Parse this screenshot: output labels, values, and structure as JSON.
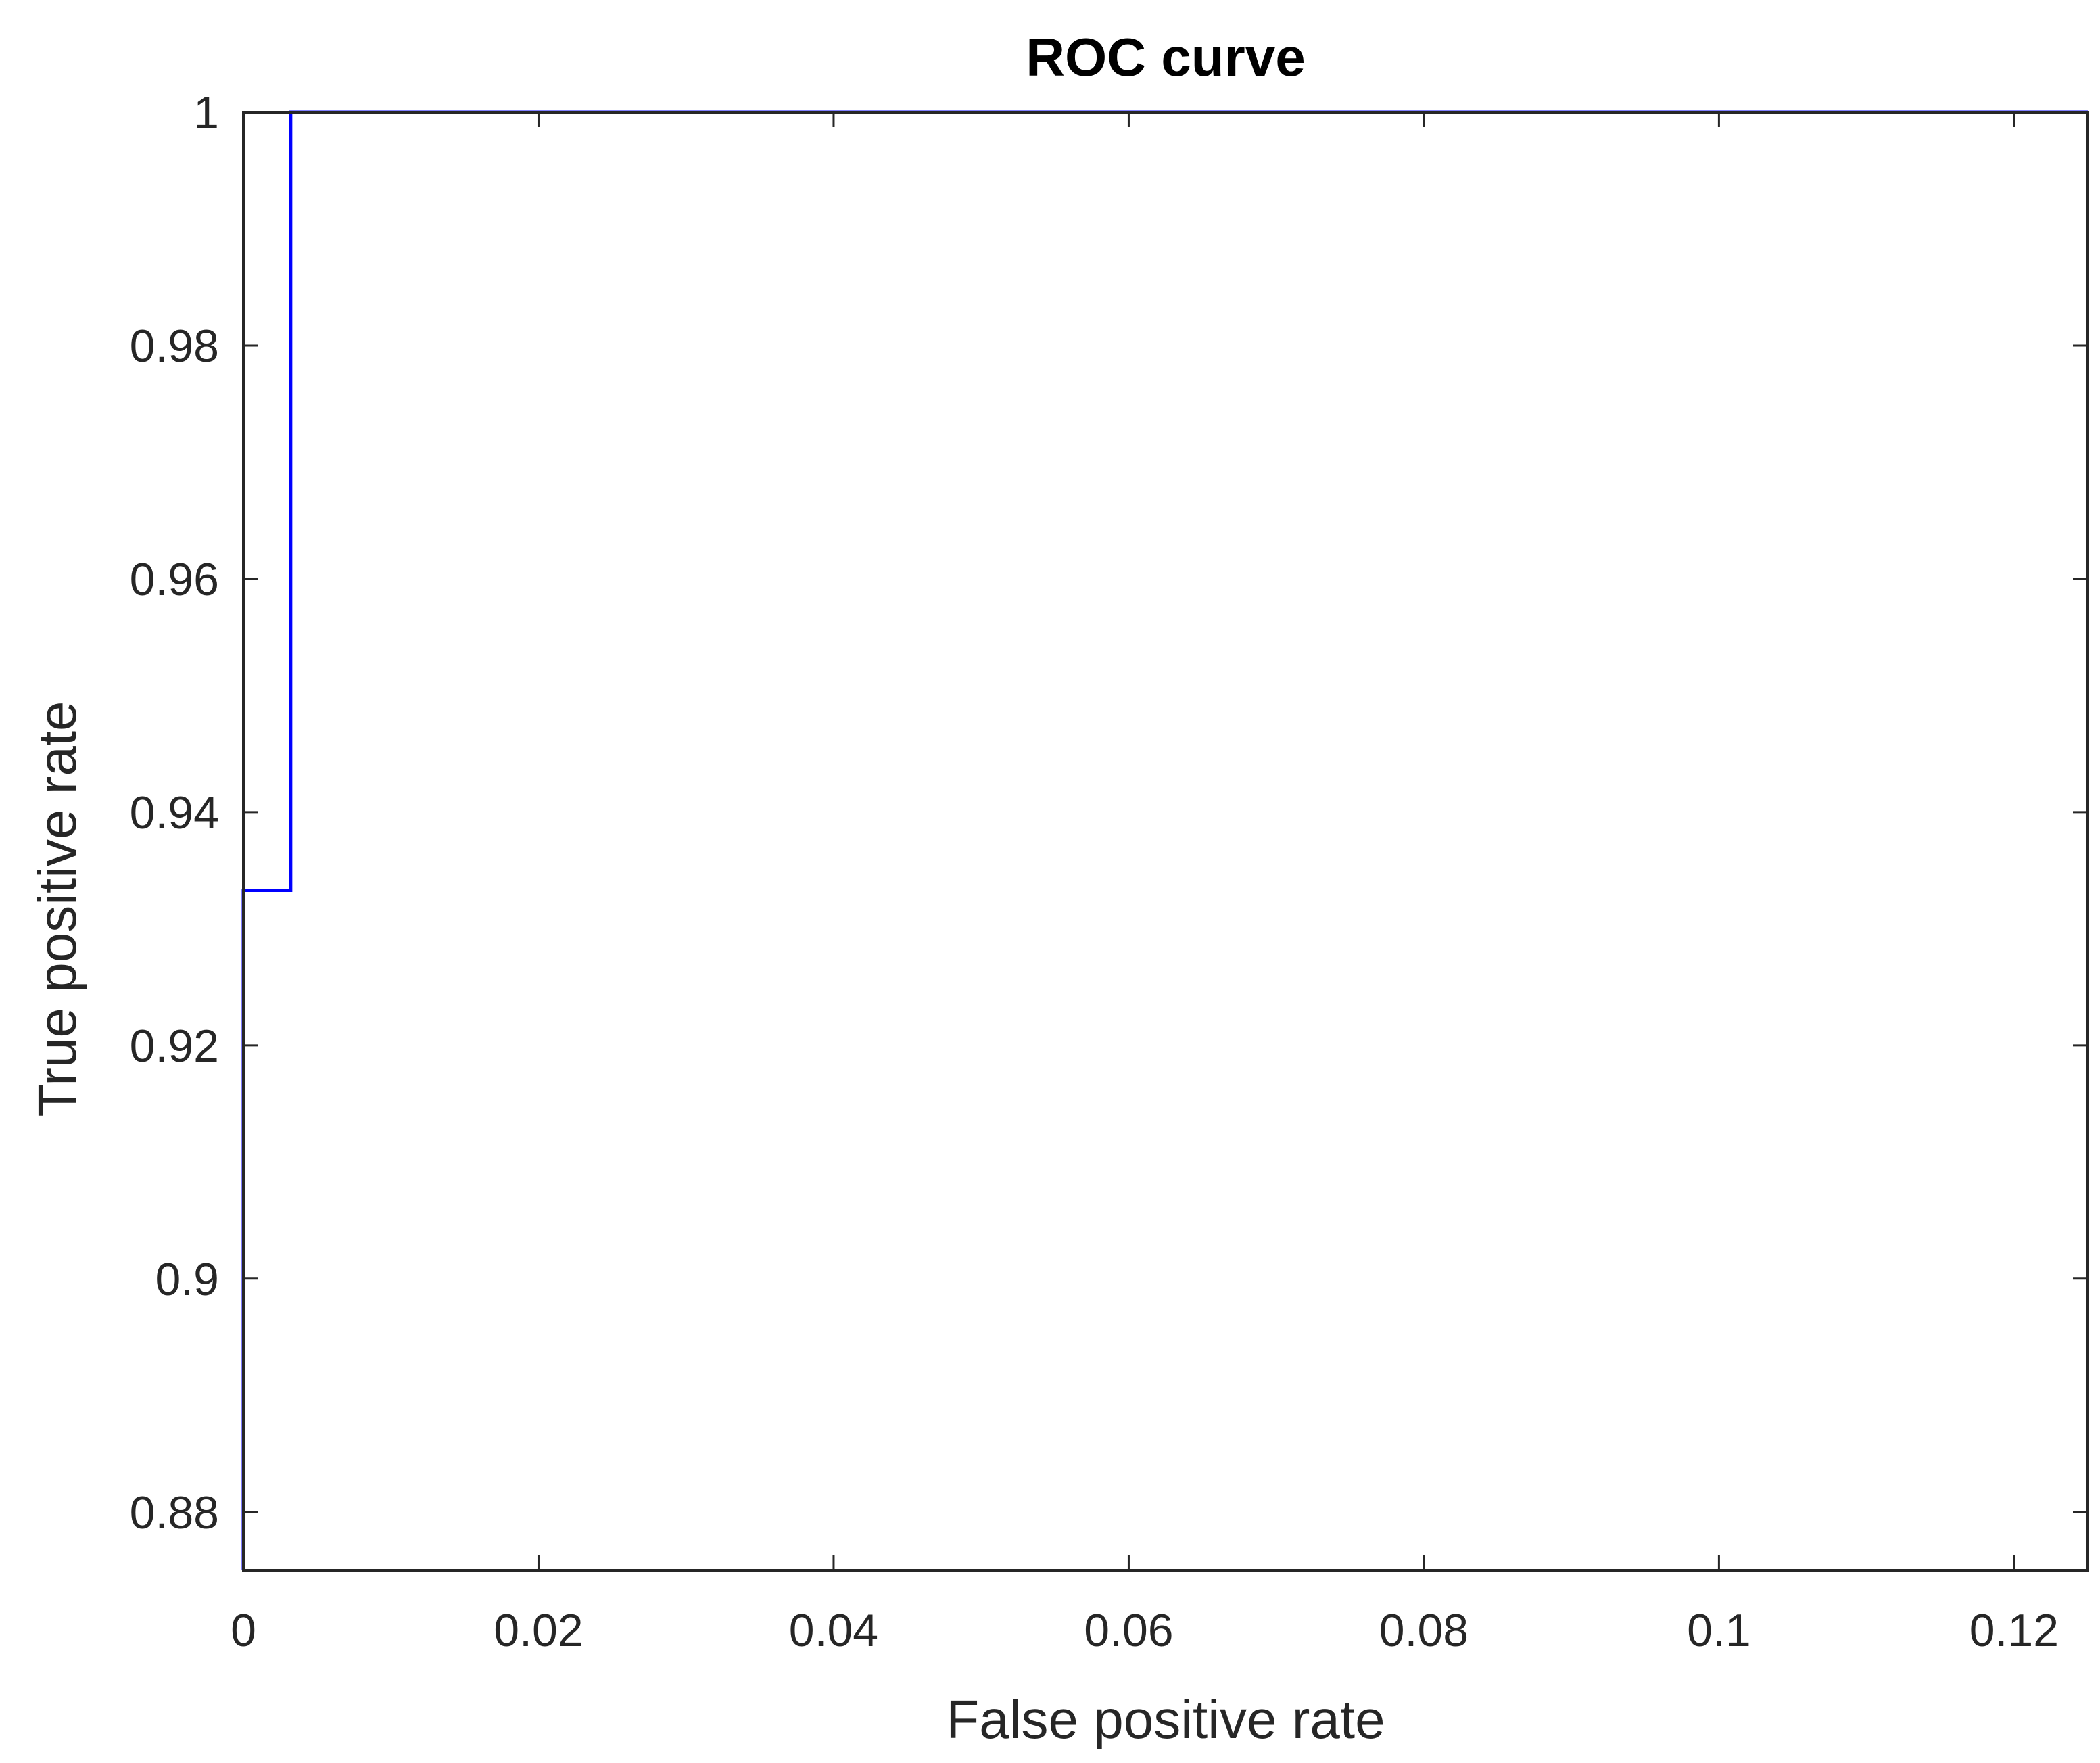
{
  "chart_data": {
    "type": "line",
    "title": "ROC curve",
    "xlabel": "False positive rate",
    "ylabel": "True positive rate",
    "xlim": [
      0,
      0.125
    ],
    "ylim": [
      0.875,
      1
    ],
    "xticks": [
      0,
      0.02,
      0.04,
      0.06,
      0.08,
      0.1,
      0.12
    ],
    "xtick_labels": [
      "0",
      "0.02",
      "0.04",
      "0.06",
      "0.08",
      "0.1",
      "0.12"
    ],
    "yticks": [
      0.88,
      0.9,
      0.92,
      0.94,
      0.96,
      0.98,
      1
    ],
    "ytick_labels": [
      "0.88",
      "0.9",
      "0.92",
      "0.94",
      "0.96",
      "0.98",
      "1"
    ],
    "grid": false,
    "box": true,
    "series": [
      {
        "color": "#0000ff",
        "x": [
          0,
          0,
          0.0032,
          0.0032,
          0.125
        ],
        "y": [
          0.875,
          0.9333,
          0.9333,
          1,
          1
        ]
      }
    ]
  }
}
